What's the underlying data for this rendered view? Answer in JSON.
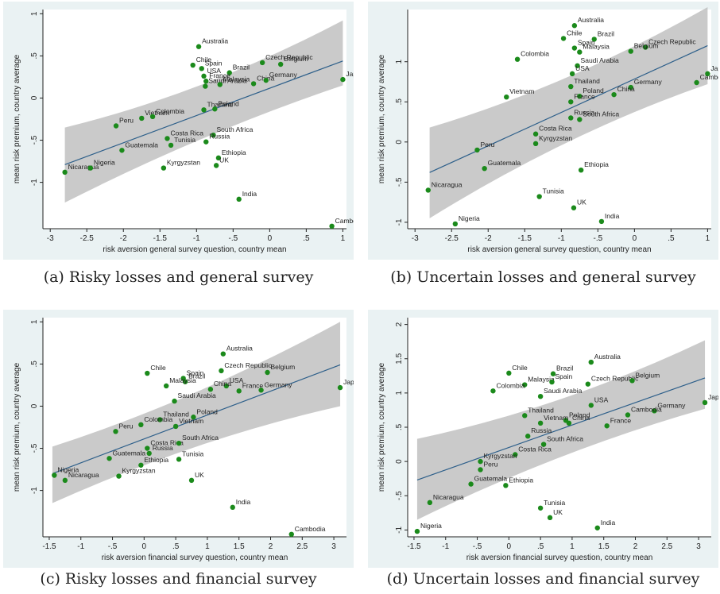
{
  "captions": [
    "(a) Risky losses and general survey",
    "(b) Uncertain losses and general survey",
    "(c) Risky losses and financial survey",
    "(d) Uncertain losses and financial survey"
  ],
  "chart_data": [
    {
      "type": "scatter",
      "xlabel": "risk aversion general survey question, country mean",
      "ylabel": "mean risk premium, country average",
      "xlim": [
        -3.1,
        1.05
      ],
      "ylim": [
        -1.55,
        1.05
      ],
      "xticks": [
        -3,
        -2.5,
        -2,
        -1.5,
        -1,
        -0.5,
        0,
        0.5,
        1
      ],
      "xtick_labels": [
        "-3",
        "-2.5",
        "-2",
        "-1.5",
        "-1",
        "-.5",
        "0",
        ".5",
        "1"
      ],
      "yticks": [
        -1,
        -0.5,
        0,
        0.5,
        1
      ],
      "ytick_labels": [
        "-1",
        "-.5",
        "0",
        ".5",
        "1"
      ],
      "fit": {
        "x": [
          -2.8,
          1.0
        ],
        "y": [
          -0.79,
          0.44
        ],
        "ci_lower": [
          -1.24,
          0.15
        ],
        "ci_upper": [
          -0.35,
          0.92
        ]
      },
      "points": [
        {
          "label": "Australia",
          "x": -0.97,
          "y": 0.61
        },
        {
          "label": "Chile",
          "x": -1.05,
          "y": 0.39
        },
        {
          "label": "Spain",
          "x": -0.93,
          "y": 0.35
        },
        {
          "label": "Czech Republic",
          "x": -0.1,
          "y": 0.42
        },
        {
          "label": "Belgium",
          "x": 0.15,
          "y": 0.4
        },
        {
          "label": "Brazil",
          "x": -0.55,
          "y": 0.3
        },
        {
          "label": "USA",
          "x": -0.9,
          "y": 0.26
        },
        {
          "label": "France",
          "x": -0.87,
          "y": 0.2
        },
        {
          "label": "Saudi Arabia",
          "x": -0.88,
          "y": 0.14
        },
        {
          "label": "Malaysia",
          "x": -0.68,
          "y": 0.16
        },
        {
          "label": "China",
          "x": -0.22,
          "y": 0.17
        },
        {
          "label": "Germany",
          "x": -0.05,
          "y": 0.21
        },
        {
          "label": "Japan",
          "x": 1.0,
          "y": 0.22
        },
        {
          "label": "Thailand",
          "x": -0.9,
          "y": -0.14
        },
        {
          "label": "Poland",
          "x": -0.75,
          "y": -0.13
        },
        {
          "label": "Peru",
          "x": -2.1,
          "y": -0.33
        },
        {
          "label": "Vietnam",
          "x": -1.75,
          "y": -0.24
        },
        {
          "label": "Colombia",
          "x": -1.6,
          "y": -0.22
        },
        {
          "label": "Costa Rica",
          "x": -1.4,
          "y": -0.48
        },
        {
          "label": "Tunisia",
          "x": -1.35,
          "y": -0.56
        },
        {
          "label": "South Africa",
          "x": -0.77,
          "y": -0.44
        },
        {
          "label": "Russia",
          "x": -0.87,
          "y": -0.52
        },
        {
          "label": "Ethiopia",
          "x": -0.7,
          "y": -0.71
        },
        {
          "label": "UK",
          "x": -0.73,
          "y": -0.8
        },
        {
          "label": "Guatemala",
          "x": -2.02,
          "y": -0.62
        },
        {
          "label": "Kyrgyzstan",
          "x": -1.45,
          "y": -0.83
        },
        {
          "label": "Nicaragua",
          "x": -2.8,
          "y": -0.88
        },
        {
          "label": "Nigeria",
          "x": -2.45,
          "y": -0.83
        },
        {
          "label": "India",
          "x": -0.42,
          "y": -1.2
        },
        {
          "label": "Cambodia",
          "x": 0.85,
          "y": -1.52
        }
      ]
    },
    {
      "type": "scatter",
      "xlabel": "risk aversion general survey question, country mean",
      "ylabel": "mean risk premium, country average",
      "xlim": [
        -3.1,
        1.05
      ],
      "ylim": [
        -1.08,
        1.65
      ],
      "xticks": [
        -3,
        -2.5,
        -2,
        -1.5,
        -1,
        -0.5,
        0,
        0.5,
        1
      ],
      "xtick_labels": [
        "-3",
        "-2.5",
        "-2",
        "-1.5",
        "-1",
        "-.5",
        "0",
        ".5",
        "1"
      ],
      "yticks": [
        -1,
        -0.5,
        0,
        0.5,
        1
      ],
      "ytick_labels": [
        "-1",
        "-.5",
        "0",
        ".5",
        "1"
      ],
      "fit": {
        "x": [
          -2.8,
          1.0
        ],
        "y": [
          -0.38,
          1.2
        ],
        "ci_lower": [
          -0.95,
          0.72
        ],
        "ci_upper": [
          0.18,
          1.68
        ]
      },
      "points": [
        {
          "label": "Australia",
          "x": -0.82,
          "y": 1.45
        },
        {
          "label": "Chile",
          "x": -0.97,
          "y": 1.29
        },
        {
          "label": "Brazil",
          "x": -0.55,
          "y": 1.28
        },
        {
          "label": "Spain",
          "x": -0.82,
          "y": 1.17
        },
        {
          "label": "Czech Republic",
          "x": 0.15,
          "y": 1.18
        },
        {
          "label": "Belgium",
          "x": -0.05,
          "y": 1.13
        },
        {
          "label": "Malaysia",
          "x": -0.75,
          "y": 1.12
        },
        {
          "label": "Colombia",
          "x": -1.6,
          "y": 1.03
        },
        {
          "label": "Saudi Arabia",
          "x": -0.78,
          "y": 0.95
        },
        {
          "label": "USA",
          "x": -0.85,
          "y": 0.85
        },
        {
          "label": "Japan",
          "x": 1.0,
          "y": 0.85
        },
        {
          "label": "Cambodia",
          "x": 0.85,
          "y": 0.74
        },
        {
          "label": "Thailand",
          "x": -0.87,
          "y": 0.69
        },
        {
          "label": "Germany",
          "x": -0.05,
          "y": 0.68
        },
        {
          "label": "China",
          "x": -0.28,
          "y": 0.59
        },
        {
          "label": "Poland",
          "x": -0.75,
          "y": 0.57
        },
        {
          "label": "France",
          "x": -0.87,
          "y": 0.5
        },
        {
          "label": "Vietnam",
          "x": -1.75,
          "y": 0.56
        },
        {
          "label": "South Africa",
          "x": -0.75,
          "y": 0.28
        },
        {
          "label": "Russia",
          "x": -0.87,
          "y": 0.3
        },
        {
          "label": "Costa Rica",
          "x": -1.35,
          "y": 0.1
        },
        {
          "label": "Peru",
          "x": -2.15,
          "y": -0.1
        },
        {
          "label": "Kyrgyzstan",
          "x": -1.35,
          "y": -0.02
        },
        {
          "label": "Guatemala",
          "x": -2.05,
          "y": -0.33
        },
        {
          "label": "Ethiopia",
          "x": -0.73,
          "y": -0.35
        },
        {
          "label": "Nicaragua",
          "x": -2.82,
          "y": -0.6
        },
        {
          "label": "Tunisia",
          "x": -1.3,
          "y": -0.68
        },
        {
          "label": "UK",
          "x": -0.83,
          "y": -0.82
        },
        {
          "label": "India",
          "x": -0.45,
          "y": -0.99
        },
        {
          "label": "Nigeria",
          "x": -2.45,
          "y": -1.02
        }
      ]
    },
    {
      "type": "scatter",
      "xlabel": "risk aversion financial survey question, country mean",
      "ylabel": "mean risk premium, country average",
      "xlim": [
        -1.6,
        3.2
      ],
      "ylim": [
        -1.55,
        1.05
      ],
      "xticks": [
        -1.5,
        -1,
        -0.5,
        0,
        0.5,
        1,
        1.5,
        2,
        2.5,
        3
      ],
      "xtick_labels": [
        "-1.5",
        "-1",
        "-.5",
        "0",
        ".5",
        "1",
        "1.5",
        "2",
        "2.5",
        "3"
      ],
      "yticks": [
        -1,
        -0.5,
        0,
        0.5,
        1
      ],
      "ytick_labels": [
        "-1",
        "-.5",
        "0",
        ".5",
        "1"
      ],
      "fit": {
        "x": [
          -1.45,
          3.1
        ],
        "y": [
          -0.8,
          0.49
        ],
        "ci_lower": [
          -1.15,
          0.0
        ],
        "ci_upper": [
          -0.48,
          1.0
        ]
      },
      "points": [
        {
          "label": "Australia",
          "x": 1.25,
          "y": 0.62
        },
        {
          "label": "Chile",
          "x": 0.05,
          "y": 0.39
        },
        {
          "label": "Spain",
          "x": 0.62,
          "y": 0.33
        },
        {
          "label": "Brazil",
          "x": 0.65,
          "y": 0.29
        },
        {
          "label": "Czech Republic",
          "x": 1.22,
          "y": 0.42
        },
        {
          "label": "Belgium",
          "x": 1.95,
          "y": 0.4
        },
        {
          "label": "USA",
          "x": 1.3,
          "y": 0.24
        },
        {
          "label": "Malaysia",
          "x": 0.35,
          "y": 0.24
        },
        {
          "label": "France",
          "x": 1.5,
          "y": 0.18
        },
        {
          "label": "Germany",
          "x": 1.85,
          "y": 0.19
        },
        {
          "label": "China",
          "x": 1.05,
          "y": 0.2
        },
        {
          "label": "Saudi Arabia",
          "x": 0.48,
          "y": 0.06
        },
        {
          "label": "Japan",
          "x": 3.1,
          "y": 0.22
        },
        {
          "label": "Thailand",
          "x": 0.25,
          "y": -0.16
        },
        {
          "label": "Poland",
          "x": 0.78,
          "y": -0.13
        },
        {
          "label": "Colombia",
          "x": -0.05,
          "y": -0.22
        },
        {
          "label": "Peru",
          "x": -0.45,
          "y": -0.3
        },
        {
          "label": "Vietnam",
          "x": 0.5,
          "y": -0.24
        },
        {
          "label": "Costa Rica",
          "x": 0.05,
          "y": -0.5
        },
        {
          "label": "South Africa",
          "x": 0.55,
          "y": -0.44
        },
        {
          "label": "Russia",
          "x": 0.08,
          "y": -0.56
        },
        {
          "label": "Tunisia",
          "x": 0.55,
          "y": -0.63
        },
        {
          "label": "Guatemala",
          "x": -0.55,
          "y": -0.62
        },
        {
          "label": "Ethiopia",
          "x": -0.05,
          "y": -0.7
        },
        {
          "label": "Nigeria",
          "x": -1.42,
          "y": -0.82
        },
        {
          "label": "Nicaragua",
          "x": -1.25,
          "y": -0.88
        },
        {
          "label": "Kyrgyzstan",
          "x": -0.4,
          "y": -0.83
        },
        {
          "label": "UK",
          "x": 0.75,
          "y": -0.88
        },
        {
          "label": "India",
          "x": 1.4,
          "y": -1.2
        },
        {
          "label": "Cambodia",
          "x": 2.33,
          "y": -1.52
        }
      ]
    },
    {
      "type": "scatter",
      "xlabel": "risk aversion financial survey question, country mean",
      "ylabel": "mean risk premium, country average",
      "xlim": [
        -1.6,
        3.2
      ],
      "ylim": [
        -1.1,
        2.1
      ],
      "xticks": [
        -1.5,
        -1,
        -0.5,
        0,
        0.5,
        1,
        1.5,
        2,
        2.5,
        3
      ],
      "xtick_labels": [
        "-1.5",
        "-1",
        "-.5",
        "0",
        ".5",
        "1",
        "1.5",
        "2",
        "2.5",
        "3"
      ],
      "yticks": [
        -1,
        -0.5,
        0,
        0.5,
        1,
        1.5,
        2
      ],
      "ytick_labels": [
        "-1",
        "-.5",
        "0",
        ".5",
        "1",
        "1.5",
        "2"
      ],
      "fit": {
        "x": [
          -1.45,
          3.1
        ],
        "y": [
          -0.27,
          1.22
        ],
        "ci_lower": [
          -0.85,
          0.77
        ],
        "ci_upper": [
          0.33,
          1.77
        ]
      },
      "points": [
        {
          "label": "Australia",
          "x": 1.3,
          "y": 1.45
        },
        {
          "label": "Chile",
          "x": 0.0,
          "y": 1.29
        },
        {
          "label": "Brazil",
          "x": 0.7,
          "y": 1.28
        },
        {
          "label": "Malaysia",
          "x": 0.25,
          "y": 1.12
        },
        {
          "label": "Spain",
          "x": 0.68,
          "y": 1.16
        },
        {
          "label": "Czech Republic",
          "x": 1.25,
          "y": 1.13
        },
        {
          "label": "Colombia",
          "x": -0.25,
          "y": 1.03
        },
        {
          "label": "Saudi Arabia",
          "x": 0.5,
          "y": 0.95
        },
        {
          "label": "Belgium",
          "x": 1.95,
          "y": 1.18
        },
        {
          "label": "USA",
          "x": 1.3,
          "y": 0.82
        },
        {
          "label": "Japan",
          "x": 3.1,
          "y": 0.86
        },
        {
          "label": "Germany",
          "x": 2.3,
          "y": 0.74
        },
        {
          "label": "Cambodia",
          "x": 1.88,
          "y": 0.68
        },
        {
          "label": "Thailand",
          "x": 0.25,
          "y": 0.67
        },
        {
          "label": "Poland",
          "x": 0.9,
          "y": 0.6
        },
        {
          "label": "France",
          "x": 1.55,
          "y": 0.52
        },
        {
          "label": "China",
          "x": 0.95,
          "y": 0.56
        },
        {
          "label": "Vietnam",
          "x": 0.5,
          "y": 0.56
        },
        {
          "label": "Russia",
          "x": 0.3,
          "y": 0.37
        },
        {
          "label": "South Africa",
          "x": 0.55,
          "y": 0.25
        },
        {
          "label": "Costa Rica",
          "x": 0.1,
          "y": 0.1
        },
        {
          "label": "Kyrgyzstan",
          "x": -0.45,
          "y": 0.0
        },
        {
          "label": "Peru",
          "x": -0.45,
          "y": -0.12
        },
        {
          "label": "Guatemala",
          "x": -0.6,
          "y": -0.33
        },
        {
          "label": "Ethiopia",
          "x": -0.05,
          "y": -0.35
        },
        {
          "label": "Nicaragua",
          "x": -1.25,
          "y": -0.6
        },
        {
          "label": "Tunisia",
          "x": 0.5,
          "y": -0.68
        },
        {
          "label": "UK",
          "x": 0.65,
          "y": -0.82
        },
        {
          "label": "India",
          "x": 1.4,
          "y": -0.97
        },
        {
          "label": "Nigeria",
          "x": -1.45,
          "y": -1.02
        }
      ]
    }
  ]
}
